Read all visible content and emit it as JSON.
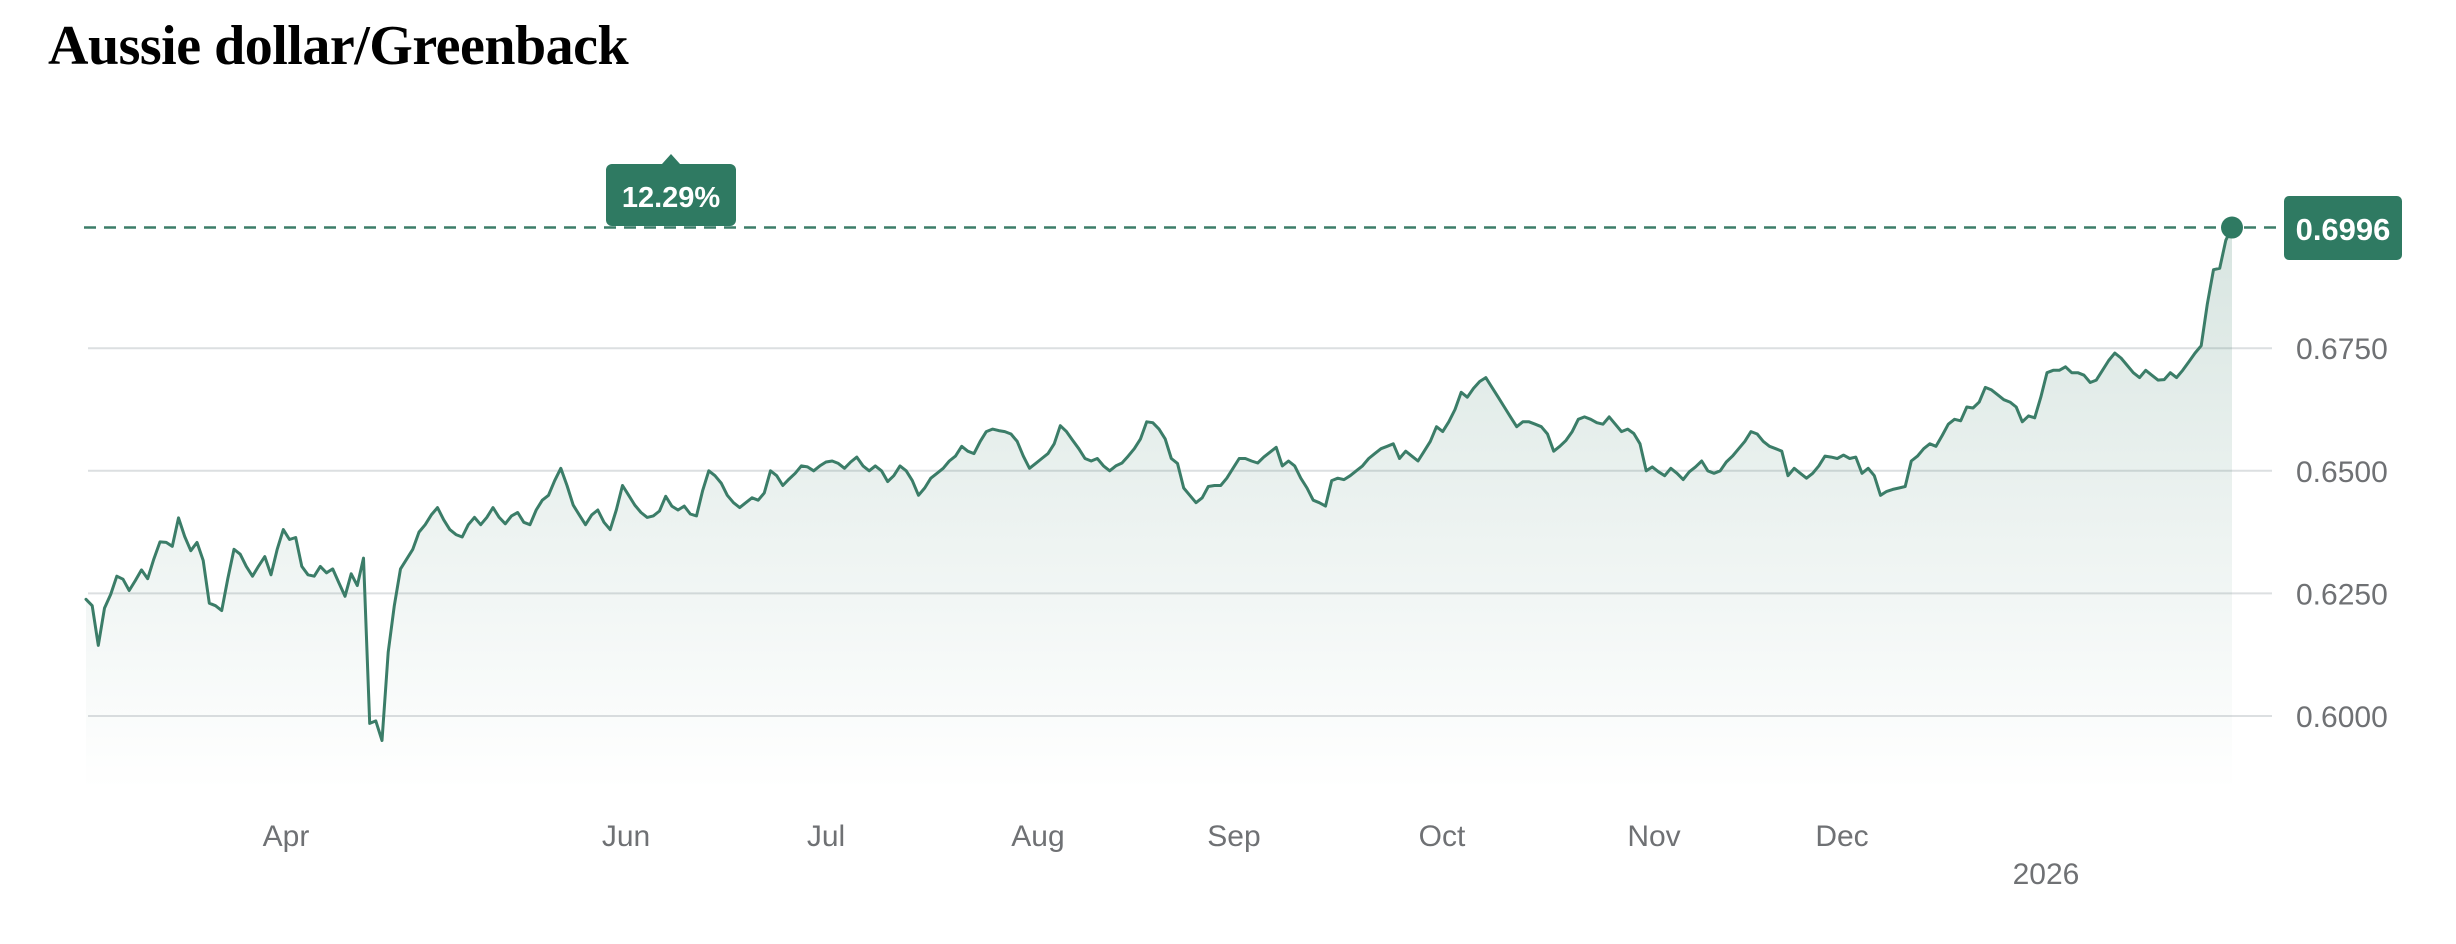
{
  "title": "Aussie dollar/Greenback",
  "chart_data": {
    "type": "area",
    "title": "Aussie dollar/Greenback",
    "xlabel": "",
    "ylabel": "",
    "y_ticks": [
      "0.6000",
      "0.6250",
      "0.6500",
      "0.6750"
    ],
    "x_tick_labels": [
      "Apr",
      "Jun",
      "Jul",
      "Aug",
      "Sep",
      "Oct",
      "Nov",
      "Dec"
    ],
    "year_label": "2026",
    "grid": true,
    "legend": "none",
    "colors": {
      "line": "#3b7d68",
      "badge": "#2f7a62",
      "grid": "#dcdfe1",
      "tick": "#6f7174"
    },
    "current_value": "0.6996",
    "change_label": "12.29%",
    "series": [
      {
        "values": [
          0.6238,
          0.6225,
          0.6144,
          0.622,
          0.6248,
          0.6285,
          0.6279,
          0.6256,
          0.6276,
          0.6298,
          0.628,
          0.632,
          0.6355,
          0.6354,
          0.6346,
          0.6404,
          0.6366,
          0.6337,
          0.6354,
          0.6317,
          0.623,
          0.6225,
          0.6215,
          0.628,
          0.634,
          0.633,
          0.6305,
          0.6285,
          0.6306,
          0.6325,
          0.6288,
          0.634,
          0.638,
          0.636,
          0.6364,
          0.6305,
          0.6288,
          0.6285,
          0.6305,
          0.6292,
          0.63,
          0.6272,
          0.6244,
          0.629,
          0.6266,
          0.6322,
          0.5985,
          0.599,
          0.595,
          0.613,
          0.6225,
          0.63,
          0.632,
          0.634,
          0.6375,
          0.639,
          0.641,
          0.6425,
          0.64,
          0.638,
          0.637,
          0.6365,
          0.639,
          0.6405,
          0.639,
          0.6405,
          0.6425,
          0.6405,
          0.6392,
          0.6408,
          0.6415,
          0.6395,
          0.639,
          0.642,
          0.644,
          0.645,
          0.648,
          0.6505,
          0.647,
          0.643,
          0.641,
          0.639,
          0.641,
          0.642,
          0.6395,
          0.638,
          0.642,
          0.647,
          0.645,
          0.643,
          0.6415,
          0.6405,
          0.6408,
          0.6418,
          0.6448,
          0.6428,
          0.642,
          0.6428,
          0.6412,
          0.6408,
          0.646,
          0.65,
          0.649,
          0.6475,
          0.645,
          0.6435,
          0.6425,
          0.6435,
          0.6445,
          0.644,
          0.6455,
          0.65,
          0.649,
          0.647,
          0.6483,
          0.6495,
          0.651,
          0.6508,
          0.65,
          0.651,
          0.6518,
          0.652,
          0.6515,
          0.6505,
          0.6518,
          0.6528,
          0.651,
          0.65,
          0.651,
          0.65,
          0.6478,
          0.649,
          0.651,
          0.65,
          0.648,
          0.645,
          0.6465,
          0.6485,
          0.6495,
          0.6505,
          0.652,
          0.653,
          0.655,
          0.654,
          0.6535,
          0.656,
          0.658,
          0.6585,
          0.6582,
          0.658,
          0.6575,
          0.656,
          0.653,
          0.6505,
          0.6515,
          0.6525,
          0.6535,
          0.6555,
          0.6592,
          0.658,
          0.6562,
          0.6545,
          0.6525,
          0.652,
          0.6525,
          0.651,
          0.65,
          0.651,
          0.6516,
          0.653,
          0.6545,
          0.6565,
          0.66,
          0.6598,
          0.6585,
          0.6565,
          0.6525,
          0.6515,
          0.6465,
          0.645,
          0.6435,
          0.6445,
          0.6468,
          0.647,
          0.647,
          0.6485,
          0.6505,
          0.6525,
          0.6525,
          0.652,
          0.6516,
          0.6528,
          0.6538,
          0.6548,
          0.651,
          0.652,
          0.651,
          0.6485,
          0.6465,
          0.644,
          0.6435,
          0.6428,
          0.648,
          0.6485,
          0.6482,
          0.649,
          0.65,
          0.651,
          0.6525,
          0.6535,
          0.6545,
          0.655,
          0.6555,
          0.6525,
          0.654,
          0.653,
          0.652,
          0.654,
          0.656,
          0.659,
          0.658,
          0.66,
          0.6625,
          0.666,
          0.665,
          0.6668,
          0.6682,
          0.669,
          0.667,
          0.665,
          0.663,
          0.661,
          0.659,
          0.66,
          0.66,
          0.6595,
          0.659,
          0.6575,
          0.654,
          0.655,
          0.6562,
          0.658,
          0.6605,
          0.661,
          0.6605,
          0.6598,
          0.6595,
          0.661,
          0.6595,
          0.658,
          0.6585,
          0.6576,
          0.6555,
          0.65,
          0.6508,
          0.6498,
          0.649,
          0.6505,
          0.6495,
          0.6482,
          0.6498,
          0.6508,
          0.652,
          0.65,
          0.6495,
          0.65,
          0.6518,
          0.653,
          0.6545,
          0.656,
          0.658,
          0.6575,
          0.656,
          0.655,
          0.6545,
          0.654,
          0.649,
          0.6505,
          0.6495,
          0.6485,
          0.6495,
          0.651,
          0.653,
          0.6528,
          0.6525,
          0.6532,
          0.6525,
          0.6528,
          0.6495,
          0.6505,
          0.649,
          0.645,
          0.6458,
          0.6462,
          0.6465,
          0.6468,
          0.652,
          0.653,
          0.6545,
          0.6555,
          0.655,
          0.6572,
          0.6595,
          0.6605,
          0.6602,
          0.663,
          0.6628,
          0.664,
          0.667,
          0.6665,
          0.6655,
          0.6645,
          0.664,
          0.663,
          0.66,
          0.6612,
          0.6608,
          0.665,
          0.67,
          0.6705,
          0.6705,
          0.6712,
          0.67,
          0.67,
          0.6695,
          0.668,
          0.6685,
          0.6705,
          0.6725,
          0.674,
          0.673,
          0.6715,
          0.67,
          0.669,
          0.6705,
          0.6695,
          0.6685,
          0.6686,
          0.67,
          0.669,
          0.6705,
          0.6722,
          0.674,
          0.6755,
          0.684,
          0.691,
          0.6913,
          0.697,
          0.6996
        ]
      }
    ]
  }
}
